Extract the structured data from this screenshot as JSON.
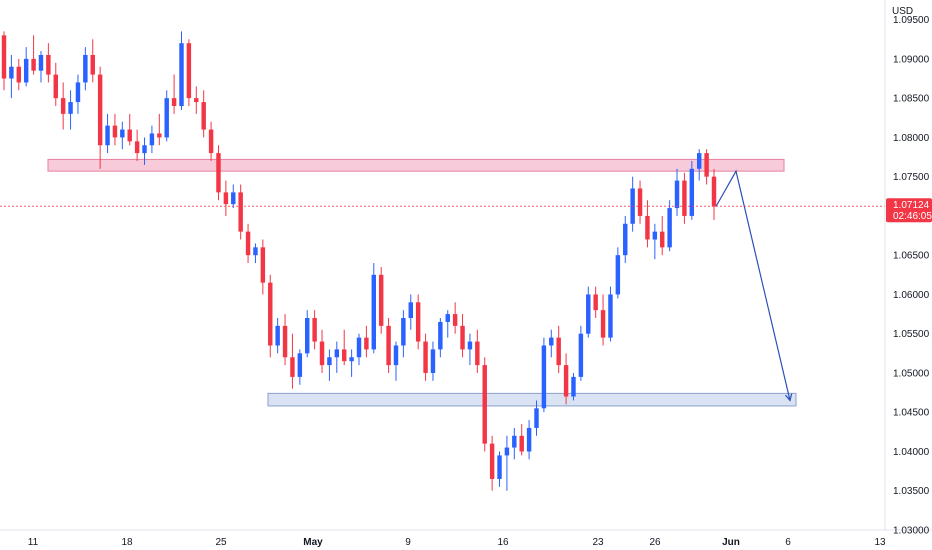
{
  "chart_data": {
    "type": "candlestick",
    "currency": "USD",
    "y_axis": {
      "min": 1.03,
      "max": 1.0975,
      "ticks": [
        "1.09500",
        "1.09000",
        "1.08500",
        "1.08000",
        "1.07500",
        "1.07000",
        "1.06500",
        "1.06000",
        "1.05500",
        "1.05000",
        "1.04500",
        "1.04000",
        "1.03500",
        "1.03000"
      ]
    },
    "x_axis": {
      "labels": [
        {
          "text": "11",
          "bold": false
        },
        {
          "text": "18",
          "bold": false
        },
        {
          "text": "25",
          "bold": false
        },
        {
          "text": "May",
          "bold": true
        },
        {
          "text": "9",
          "bold": false
        },
        {
          "text": "16",
          "bold": false
        },
        {
          "text": "23",
          "bold": false
        },
        {
          "text": "26",
          "bold": false
        },
        {
          "text": "Jun",
          "bold": true
        },
        {
          "text": "6",
          "bold": false
        },
        {
          "text": "13",
          "bold": false
        }
      ]
    },
    "current_price": {
      "value": 1.07124,
      "label": "1.07124",
      "countdown": "02:46:05"
    },
    "zones": [
      {
        "name": "resistance",
        "from": 1.0757,
        "to": 1.0772,
        "color": "#f7c6d6",
        "border": "#e57393"
      },
      {
        "name": "support",
        "from": 1.0458,
        "to": 1.0474,
        "color": "#d6e0f2",
        "border": "#7e96c9"
      }
    ],
    "projection": {
      "points": [
        1.0712,
        1.0757,
        1.0465
      ]
    },
    "candles": [
      [
        1.093,
        1.0935,
        1.086,
        1.0875
      ],
      [
        1.0875,
        1.0905,
        1.085,
        1.089
      ],
      [
        1.089,
        1.09,
        1.086,
        1.087
      ],
      [
        1.087,
        1.0915,
        1.0865,
        1.09
      ],
      [
        1.09,
        1.093,
        1.088,
        1.0885
      ],
      [
        1.0885,
        1.091,
        1.087,
        1.0905
      ],
      [
        1.0905,
        1.092,
        1.087,
        1.088
      ],
      [
        1.088,
        1.0895,
        1.084,
        1.085
      ],
      [
        1.085,
        1.087,
        1.081,
        1.083
      ],
      [
        1.083,
        1.086,
        1.081,
        1.0845
      ],
      [
        1.0845,
        1.088,
        1.083,
        1.087
      ],
      [
        1.087,
        1.0915,
        1.086,
        1.0905
      ],
      [
        1.0905,
        1.0925,
        1.087,
        1.088
      ],
      [
        1.088,
        1.089,
        1.076,
        1.079
      ],
      [
        1.079,
        1.083,
        1.078,
        1.0815
      ],
      [
        1.0815,
        1.083,
        1.079,
        1.08
      ],
      [
        1.08,
        1.082,
        1.0785,
        1.081
      ],
      [
        1.081,
        1.083,
        1.079,
        1.0795
      ],
      [
        1.0795,
        1.081,
        1.077,
        1.078
      ],
      [
        1.078,
        1.08,
        1.0765,
        1.079
      ],
      [
        1.079,
        1.0815,
        1.078,
        1.0805
      ],
      [
        1.0805,
        1.083,
        1.079,
        1.08
      ],
      [
        1.08,
        1.086,
        1.0795,
        1.085
      ],
      [
        1.085,
        1.088,
        1.083,
        1.084
      ],
      [
        1.084,
        1.0935,
        1.0835,
        1.092
      ],
      [
        1.092,
        1.0925,
        1.084,
        1.085
      ],
      [
        1.085,
        1.0865,
        1.083,
        1.0845
      ],
      [
        1.0845,
        1.086,
        1.08,
        1.081
      ],
      [
        1.081,
        1.082,
        1.077,
        1.078
      ],
      [
        1.078,
        1.079,
        1.072,
        1.073
      ],
      [
        1.073,
        1.0745,
        1.07,
        1.0715
      ],
      [
        1.0715,
        1.074,
        1.071,
        1.073
      ],
      [
        1.073,
        1.074,
        1.067,
        1.068
      ],
      [
        1.068,
        1.069,
        1.064,
        1.065
      ],
      [
        1.065,
        1.0665,
        1.064,
        1.066
      ],
      [
        1.066,
        1.067,
        1.06,
        1.0615
      ],
      [
        1.0615,
        1.0625,
        1.052,
        1.0535
      ],
      [
        1.0535,
        1.057,
        1.0525,
        1.056
      ],
      [
        1.056,
        1.0575,
        1.051,
        1.052
      ],
      [
        1.052,
        1.055,
        1.048,
        1.0495
      ],
      [
        1.0495,
        1.053,
        1.0485,
        1.0525
      ],
      [
        1.0525,
        1.058,
        1.052,
        1.057
      ],
      [
        1.057,
        1.058,
        1.053,
        1.054
      ],
      [
        1.054,
        1.0555,
        1.05,
        1.051
      ],
      [
        1.051,
        1.053,
        1.049,
        1.052
      ],
      [
        1.052,
        1.054,
        1.05,
        1.053
      ],
      [
        1.053,
        1.0555,
        1.051,
        1.0515
      ],
      [
        1.0515,
        1.053,
        1.0495,
        1.052
      ],
      [
        1.052,
        1.055,
        1.051,
        1.0545
      ],
      [
        1.0545,
        1.056,
        1.052,
        1.053
      ],
      [
        1.053,
        1.064,
        1.0525,
        1.0625
      ],
      [
        1.0625,
        1.0635,
        1.055,
        1.056
      ],
      [
        1.056,
        1.057,
        1.05,
        1.051
      ],
      [
        1.051,
        1.054,
        1.049,
        1.0535
      ],
      [
        1.0535,
        1.058,
        1.052,
        1.057
      ],
      [
        1.057,
        1.06,
        1.0555,
        1.059
      ],
      [
        1.059,
        1.06,
        1.053,
        1.054
      ],
      [
        1.054,
        1.055,
        1.049,
        1.05
      ],
      [
        1.05,
        1.054,
        1.049,
        1.053
      ],
      [
        1.053,
        1.057,
        1.052,
        1.0565
      ],
      [
        1.0565,
        1.058,
        1.0545,
        1.0575
      ],
      [
        1.0575,
        1.059,
        1.055,
        1.056
      ],
      [
        1.056,
        1.0575,
        1.052,
        1.053
      ],
      [
        1.053,
        1.055,
        1.051,
        1.054
      ],
      [
        1.054,
        1.0555,
        1.05,
        1.051
      ],
      [
        1.051,
        1.052,
        1.04,
        1.041
      ],
      [
        1.041,
        1.042,
        1.035,
        1.0365
      ],
      [
        1.0365,
        1.04,
        1.0355,
        1.0395
      ],
      [
        1.0395,
        1.042,
        1.035,
        1.0405
      ],
      [
        1.0405,
        1.043,
        1.039,
        1.042
      ],
      [
        1.042,
        1.0435,
        1.0395,
        1.04
      ],
      [
        1.04,
        1.044,
        1.039,
        1.043
      ],
      [
        1.043,
        1.0465,
        1.042,
        1.0455
      ],
      [
        1.0455,
        1.0545,
        1.045,
        1.0535
      ],
      [
        1.0535,
        1.0555,
        1.052,
        1.0545
      ],
      [
        1.0545,
        1.056,
        1.05,
        1.051
      ],
      [
        1.051,
        1.0525,
        1.046,
        1.047
      ],
      [
        1.047,
        1.05,
        1.0465,
        1.0495
      ],
      [
        1.0495,
        1.056,
        1.049,
        1.055
      ],
      [
        1.055,
        1.061,
        1.0545,
        1.06
      ],
      [
        1.06,
        1.061,
        1.057,
        1.058
      ],
      [
        1.058,
        1.06,
        1.0535,
        1.0545
      ],
      [
        1.0545,
        1.061,
        1.054,
        1.06
      ],
      [
        1.06,
        1.066,
        1.0595,
        1.065
      ],
      [
        1.065,
        1.07,
        1.064,
        1.069
      ],
      [
        1.069,
        1.075,
        1.068,
        1.0735
      ],
      [
        1.0735,
        1.0745,
        1.069,
        1.07
      ],
      [
        1.07,
        1.072,
        1.066,
        1.067
      ],
      [
        1.067,
        1.069,
        1.0645,
        1.068
      ],
      [
        1.068,
        1.07,
        1.065,
        1.066
      ],
      [
        1.066,
        1.072,
        1.0655,
        1.071
      ],
      [
        1.071,
        1.076,
        1.07,
        1.0745
      ],
      [
        1.0745,
        1.0755,
        1.069,
        1.07
      ],
      [
        1.07,
        1.077,
        1.0695,
        1.076
      ],
      [
        1.076,
        1.0785,
        1.0745,
        1.078
      ],
      [
        1.078,
        1.0785,
        1.074,
        1.075
      ],
      [
        1.075,
        1.076,
        1.0695,
        1.0712
      ]
    ]
  }
}
